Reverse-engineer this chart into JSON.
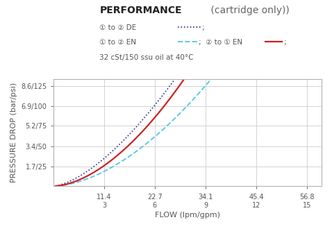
{
  "title_bold": "PERFORMANCE",
  "title_normal": " (cartridge only))",
  "legend_line1": "① to ② DE",
  "legend_line2a": "① to ② EN",
  "legend_line2b": "② to ① EN",
  "legend_line3": "32 cSt/150 ssu oil at 40°C",
  "xlabel": "FLOW (lpm/gpm)",
  "ylabel": "PRESSURE DROP (bar/psi)",
  "x_ticks": [
    11.4,
    22.7,
    34.1,
    45.4,
    56.8
  ],
  "x_ticks_upper": [
    "11.4",
    "22.7",
    "34.1",
    "45.4",
    "56.8"
  ],
  "x_ticks_lower": [
    "3",
    "6",
    "9",
    "12",
    "15"
  ],
  "y_ticks_labels": [
    "1.7/25",
    "3.4/50",
    "5.2/75",
    "6.9/100",
    "8.6/125"
  ],
  "y_ticks_values": [
    1.7,
    3.4,
    5.2,
    6.9,
    8.6
  ],
  "xlim": [
    0,
    60
  ],
  "ylim": [
    0,
    9.2
  ],
  "color_de": "#2B2B7F",
  "color_en_1to2": "#5BC8E8",
  "color_en_2to1": "#CC2222",
  "bg_color": "#FFFFFF",
  "grid_color": "#CCCCCC"
}
